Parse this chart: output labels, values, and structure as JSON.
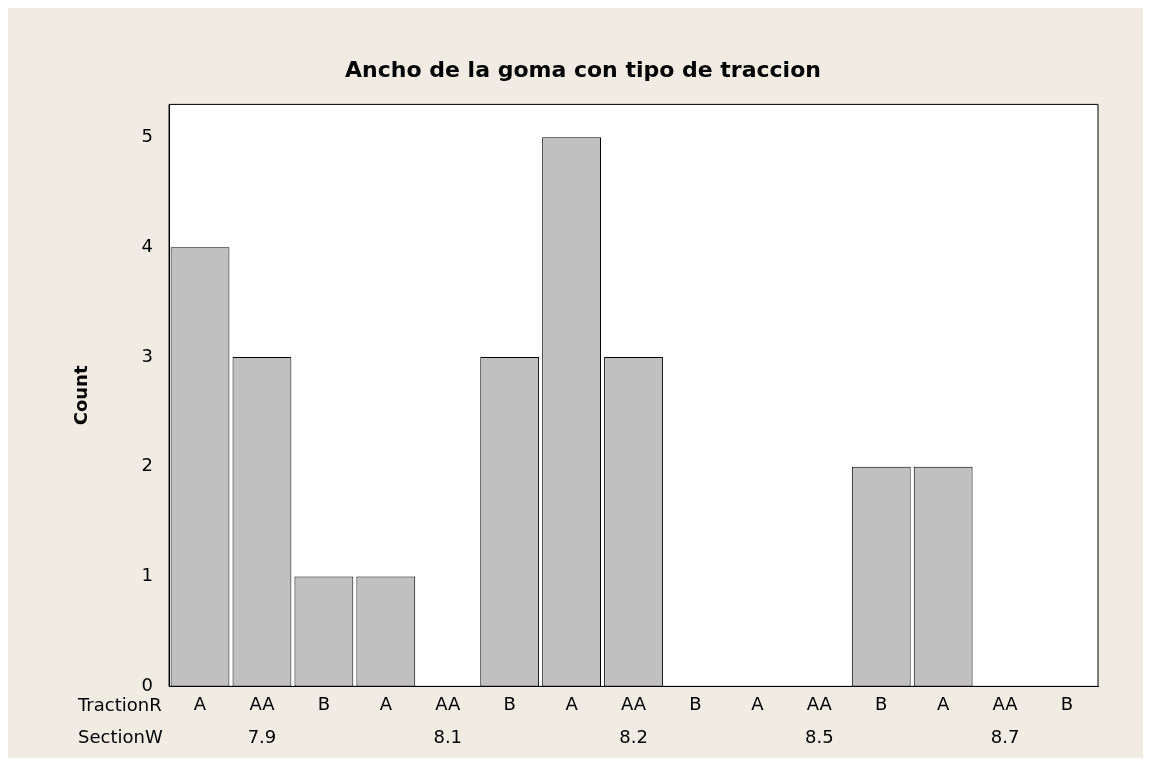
{
  "chart_data": {
    "type": "bar",
    "title": "Ancho de la goma con tipo de traccion",
    "ylabel": "Count",
    "categories": [
      "A",
      "AA",
      "B",
      "A",
      "AA",
      "B",
      "A",
      "AA",
      "B",
      "A",
      "AA",
      "B",
      "A",
      "AA",
      "B"
    ],
    "values": [
      4,
      3,
      1,
      1,
      0,
      3,
      5,
      3,
      0,
      0,
      0,
      2,
      2,
      0,
      0
    ],
    "color": "#c0c0c0",
    "ylim": [
      0,
      5.3
    ],
    "yticks": [
      0,
      1,
      2,
      3,
      4,
      5
    ],
    "grid": false,
    "legend": false,
    "annotations": [
      "TractionR",
      "SectionW",
      "7.9",
      "8.1",
      "8.2",
      "8.5",
      "8.7"
    ]
  }
}
